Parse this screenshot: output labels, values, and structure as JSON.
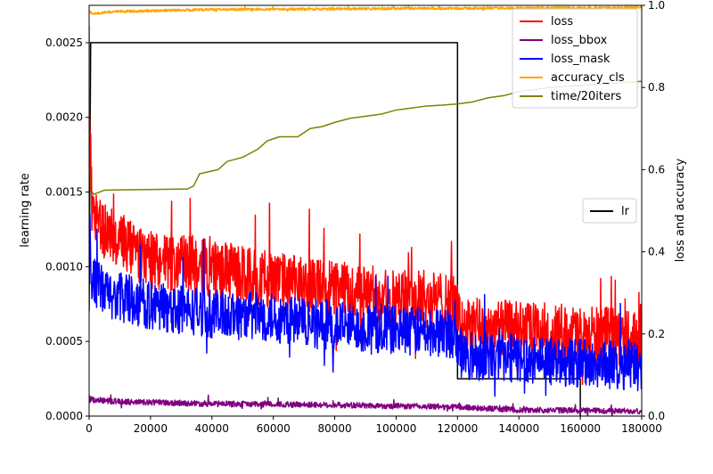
{
  "chart_data": {
    "type": "line",
    "xlim": [
      0,
      180000
    ],
    "x_ticks": [
      "0",
      "20000",
      "40000",
      "60000",
      "80000",
      "100000",
      "120000",
      "140000",
      "160000",
      "180000"
    ],
    "y_left": {
      "label": "learning rate",
      "lim": [
        0,
        0.00275
      ],
      "ticks": [
        "0.0000",
        "0.0005",
        "0.0010",
        "0.0015",
        "0.0020",
        "0.0025"
      ]
    },
    "y_right": {
      "label": "loss and accuracy",
      "lim": [
        0,
        1.0
      ],
      "ticks": [
        "0.0",
        "0.2",
        "0.4",
        "0.6",
        "0.8",
        "1.0"
      ]
    },
    "grid": false,
    "legend_right": {
      "placement": "top-right",
      "entries": [
        {
          "name": "loss",
          "color": "#ff0000"
        },
        {
          "name": "loss_bbox",
          "color": "#800080"
        },
        {
          "name": "loss_mask",
          "color": "#0000ff"
        },
        {
          "name": "accuracy_cls",
          "color": "#ffa500"
        },
        {
          "name": "time/20iters",
          "color": "#808000"
        }
      ]
    },
    "legend_left": {
      "placement": "center-right",
      "entries": [
        {
          "name": "lr",
          "color": "#000000"
        }
      ]
    },
    "series": [
      {
        "name": "lr",
        "axis": "left",
        "color": "#000000",
        "step": true,
        "x": [
          0,
          500,
          120000,
          120000,
          160000,
          160000
        ],
        "y": [
          0.0007,
          0.0025,
          0.0025,
          0.00025,
          0.00025,
          0.0
        ]
      },
      {
        "name": "loss",
        "axis": "right",
        "color": "#ff0000",
        "noise": 0.07,
        "x": [
          0,
          500,
          1000,
          5000,
          10000,
          20000,
          40000,
          60000,
          80000,
          100000,
          119000,
          121000,
          140000,
          160000,
          180000
        ],
        "y": [
          0.85,
          0.62,
          0.52,
          0.45,
          0.42,
          0.38,
          0.36,
          0.33,
          0.31,
          0.29,
          0.28,
          0.22,
          0.21,
          0.2,
          0.19
        ]
      },
      {
        "name": "loss_mask",
        "axis": "right",
        "color": "#0000ff",
        "noise": 0.06,
        "x": [
          0,
          500,
          1000,
          5000,
          10000,
          20000,
          40000,
          60000,
          80000,
          100000,
          119000,
          121000,
          140000,
          160000,
          180000
        ],
        "y": [
          0.55,
          0.38,
          0.33,
          0.3,
          0.29,
          0.27,
          0.25,
          0.24,
          0.22,
          0.21,
          0.2,
          0.15,
          0.14,
          0.13,
          0.12
        ]
      },
      {
        "name": "loss_bbox",
        "axis": "right",
        "color": "#800080",
        "noise": 0.007,
        "x": [
          0,
          1000,
          10000,
          40000,
          80000,
          120000,
          140000,
          180000
        ],
        "y": [
          0.045,
          0.04,
          0.035,
          0.03,
          0.027,
          0.022,
          0.015,
          0.012
        ]
      },
      {
        "name": "accuracy_cls",
        "axis": "right",
        "color": "#ffa500",
        "noise": 0.003,
        "x": [
          0,
          1000,
          10000,
          40000,
          100000,
          180000
        ],
        "y": [
          0.985,
          0.98,
          0.985,
          0.99,
          0.992,
          0.995
        ]
      },
      {
        "name": "time/20iters",
        "axis": "right",
        "color": "#808000",
        "noise": 0.0,
        "x": [
          0,
          200,
          500,
          1500,
          5000,
          32000,
          34000,
          36000,
          42000,
          45000,
          50000,
          55000,
          58000,
          62000,
          68000,
          72000,
          76000,
          80000,
          85000,
          90000,
          95000,
          100000,
          105000,
          110000,
          115000,
          120000,
          125000,
          130000,
          135000,
          140000,
          150000,
          160000,
          170000,
          180000
        ],
        "y": [
          0.95,
          0.6,
          0.55,
          0.54,
          0.55,
          0.553,
          0.56,
          0.59,
          0.6,
          0.62,
          0.63,
          0.65,
          0.67,
          0.68,
          0.68,
          0.7,
          0.705,
          0.715,
          0.725,
          0.73,
          0.735,
          0.745,
          0.75,
          0.755,
          0.757,
          0.76,
          0.765,
          0.775,
          0.78,
          0.79,
          0.8,
          0.805,
          0.81,
          0.815
        ]
      }
    ]
  }
}
